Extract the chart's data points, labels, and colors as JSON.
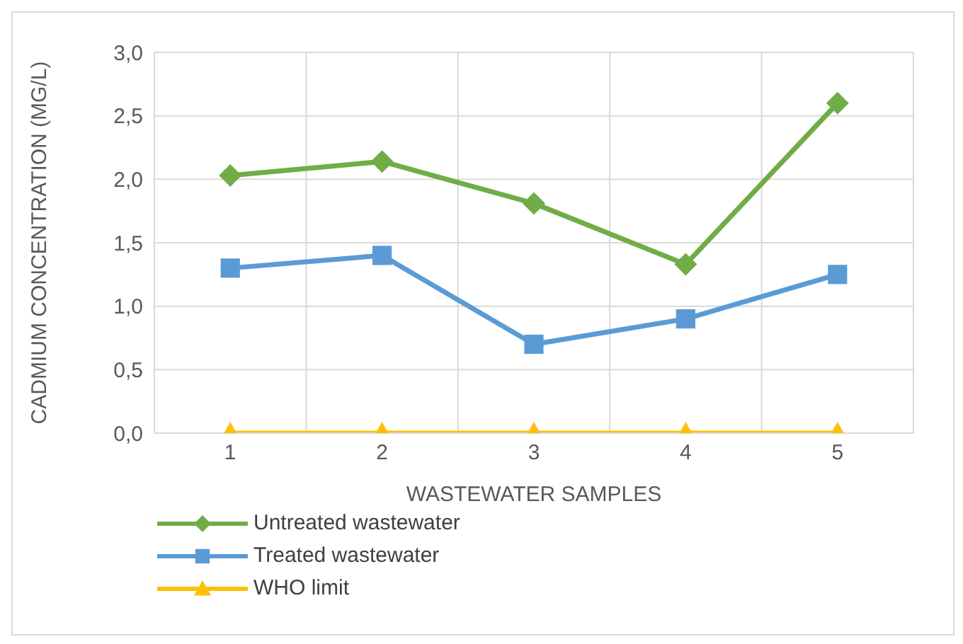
{
  "chart_data": {
    "type": "line",
    "xlabel": "WASTEWATER SAMPLES",
    "ylabel": "CADMIUM CONCENTRATION (MG/L)",
    "categories": [
      "1",
      "2",
      "3",
      "4",
      "5"
    ],
    "series": [
      {
        "name": "Untreated wastewater",
        "color": "#70ad47",
        "marker": "diamond",
        "values": [
          2.03,
          2.14,
          1.81,
          1.33,
          2.6
        ]
      },
      {
        "name": "Treated wastewater",
        "color": "#5b9bd5",
        "marker": "square",
        "values": [
          1.3,
          1.4,
          0.7,
          0.9,
          1.25
        ]
      },
      {
        "name": "WHO limit",
        "color": "#ffc000",
        "marker": "triangle",
        "values": [
          0,
          0,
          0,
          0,
          0
        ]
      }
    ],
    "ylim": [
      0,
      3
    ],
    "yticks": [
      {
        "value": 0,
        "label": "0,0"
      },
      {
        "value": 0.5,
        "label": "0,5"
      },
      {
        "value": 1,
        "label": "1,0"
      },
      {
        "value": 1.5,
        "label": "1,5"
      },
      {
        "value": 2,
        "label": "2,0"
      },
      {
        "value": 2.5,
        "label": "2,5"
      },
      {
        "value": 3,
        "label": "3,0"
      }
    ],
    "grid": true,
    "legend": "bottom",
    "line_style": "solid"
  }
}
